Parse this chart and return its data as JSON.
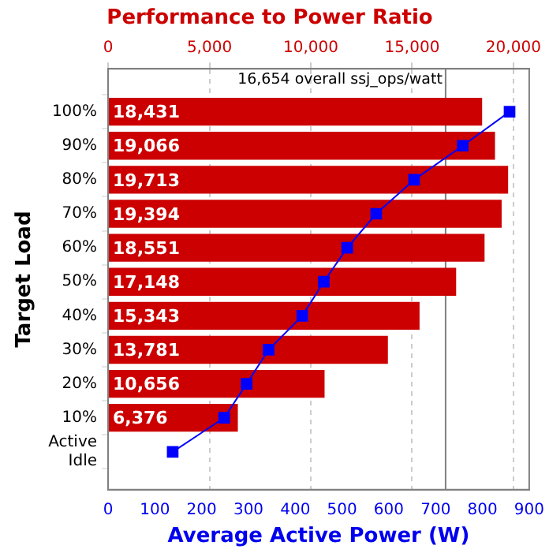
{
  "chart_data": {
    "type": "bar",
    "orientation": "horizontal",
    "title": "Performance to Power Ratio",
    "xlabel": "Average Active Power (W)",
    "ylabel": "Target Load",
    "categories": [
      "100%",
      "90%",
      "80%",
      "70%",
      "60%",
      "50%",
      "40%",
      "30%",
      "20%",
      "10%",
      "Active Idle"
    ],
    "series": [
      {
        "type": "bar",
        "axis": "x2",
        "color": "#cc0000",
        "values": [
          18431,
          19066,
          19713,
          19394,
          18551,
          17148,
          15343,
          13781,
          10656,
          6376,
          null
        ],
        "value_labels": [
          "18,431",
          "19,066",
          "19,713",
          "19,394",
          "18,551",
          "17,148",
          "15,343",
          "13,781",
          "10,656",
          "6,376",
          null
        ]
      },
      {
        "type": "line",
        "color": "#0000ff",
        "marker": "square",
        "values": [
          858,
          758,
          654,
          573,
          511,
          461,
          415,
          343,
          296,
          248,
          138
        ]
      }
    ],
    "xlim": [
      0,
      900
    ],
    "xticks": [
      0,
      100,
      200,
      300,
      400,
      500,
      600,
      700,
      800,
      900
    ],
    "x2lim": [
      0,
      20780
    ],
    "x2ticks": [
      {
        "value": 0,
        "label": "0"
      },
      {
        "value": 5000,
        "label": "5,000"
      },
      {
        "value": 10000,
        "label": "10,000"
      },
      {
        "value": 15000,
        "label": "15,000"
      },
      {
        "value": 20000,
        "label": "20,000"
      }
    ],
    "grid": "x2",
    "ref_lines": [
      {
        "axis": "x2",
        "value": 16654,
        "label": "16,654 overall ssj_ops/watt",
        "color": "#808080"
      }
    ]
  }
}
